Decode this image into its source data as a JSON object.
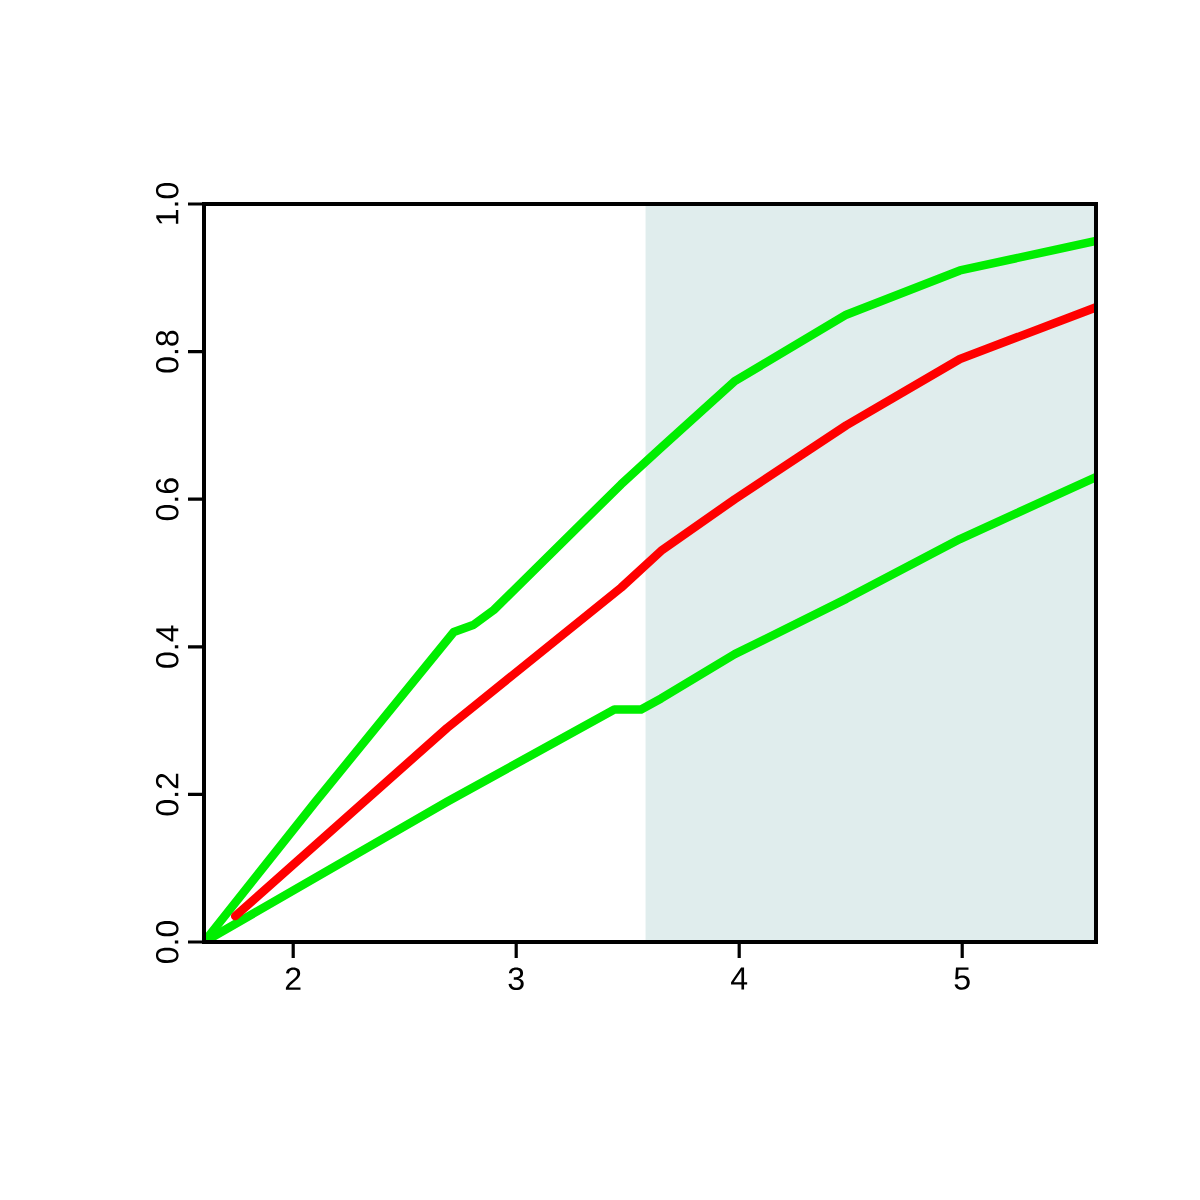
{
  "chart_data": {
    "type": "line",
    "series": [
      {
        "color": "#00ee00",
        "x": [
          1.6,
          2.1,
          2.72,
          2.81,
          2.9,
          3.47,
          3.65,
          3.98,
          4.48,
          4.99,
          5.6
        ],
        "values": [
          0.0,
          0.19,
          0.42,
          0.43,
          0.45,
          0.62,
          0.67,
          0.76,
          0.85,
          0.91,
          0.95
        ]
      },
      {
        "color": "#00ee00",
        "x": [
          1.6,
          2.69,
          3.44,
          3.56,
          3.65,
          3.98,
          4.48,
          4.99,
          5.6
        ],
        "values": [
          0.0,
          0.19,
          0.315,
          0.315,
          0.33,
          0.39,
          0.465,
          0.546,
          0.63
        ]
      },
      {
        "color": "#ff0000",
        "x": [
          1.74,
          2.69,
          3.47,
          3.65,
          3.98,
          4.48,
          4.99,
          5.6
        ],
        "values": [
          0.035,
          0.29,
          0.48,
          0.53,
          0.6,
          0.7,
          0.79,
          0.86
        ]
      }
    ],
    "bands": [
      {
        "axis": "x",
        "from": 3.58,
        "to": 5.6,
        "color": "#e0eded"
      }
    ],
    "xlim": [
      1.6,
      5.6
    ],
    "ylim": [
      0,
      1
    ],
    "xticks": [
      2,
      3,
      4,
      5
    ],
    "yticks": [
      {
        "value": 0,
        "label": "0.0"
      },
      {
        "value": 0.2,
        "label": "0.2"
      },
      {
        "value": 0.4,
        "label": "0.4"
      },
      {
        "value": 0.6,
        "label": "0.6"
      },
      {
        "value": 0.8,
        "label": "0.8"
      },
      {
        "value": 1,
        "label": "1.0"
      }
    ],
    "grid": false
  }
}
